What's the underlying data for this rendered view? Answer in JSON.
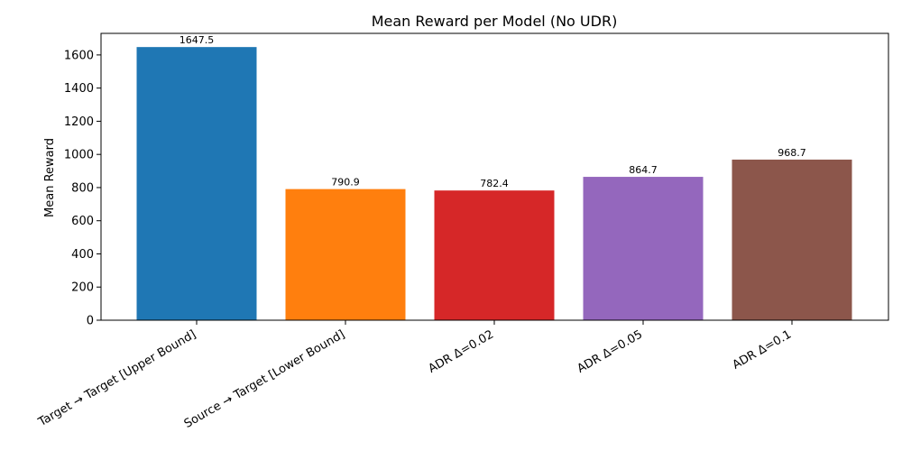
{
  "chart_data": {
    "type": "bar",
    "title": "Mean Reward per Model (No UDR)",
    "xlabel": "",
    "ylabel": "Mean Reward",
    "ylim": [
      0,
      1730
    ],
    "yticks": [
      0,
      200,
      400,
      600,
      800,
      1000,
      1200,
      1400,
      1600
    ],
    "categories": [
      "Target → Target [Upper Bound]",
      "Source → Target [Lower Bound]",
      "ADR Δ=0.02",
      "ADR Δ=0.05",
      "ADR Δ=0.1"
    ],
    "values": [
      1647.5,
      790.9,
      782.4,
      864.7,
      968.7
    ],
    "value_labels": [
      "1647.5",
      "790.9",
      "782.4",
      "864.7",
      "968.7"
    ],
    "colors": [
      "#1f77b4",
      "#ff7f0e",
      "#d62728",
      "#9467bd",
      "#8c564b"
    ],
    "grid": false,
    "legend": "none"
  }
}
